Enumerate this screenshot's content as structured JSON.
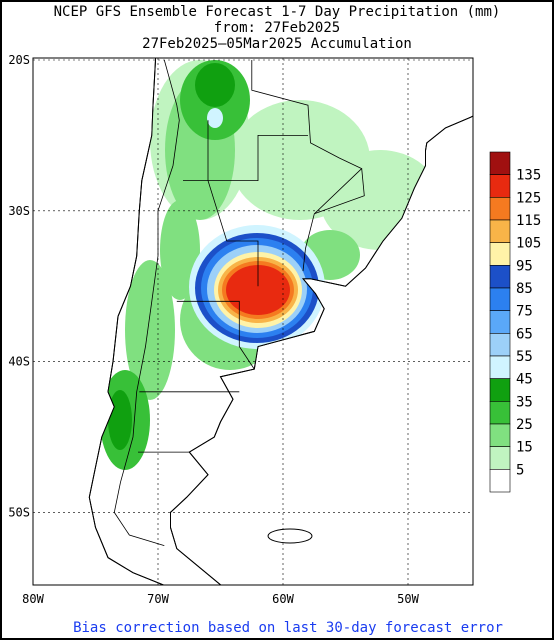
{
  "header": {
    "title": "NCEP GFS Ensemble Forecast 1-7 Day Precipitation (mm)",
    "subtitle": "from: 27Feb2025",
    "period": "27Feb2025–05Mar2025 Accumulation"
  },
  "map": {
    "lat_labels": [
      "20S",
      "30S",
      "40S",
      "50S"
    ],
    "lon_labels": [
      "80W",
      "70W",
      "60W",
      "50W"
    ]
  },
  "legend": {
    "labels": [
      135,
      125,
      115,
      105,
      95,
      85,
      75,
      65,
      55,
      45,
      35,
      25,
      15,
      5
    ],
    "colors": [
      "#a01010",
      "#e82a10",
      "#f57a20",
      "#f8b448",
      "#fff3a8",
      "#1c50c8",
      "#2c80f0",
      "#5aa8f8",
      "#9cd0f8",
      "#d0f4ff",
      "#10a010",
      "#38c038",
      "#80e080",
      "#c0f4c0",
      "#ffffff"
    ]
  },
  "footer": "Bias correction based on last 30-day forecast error"
}
